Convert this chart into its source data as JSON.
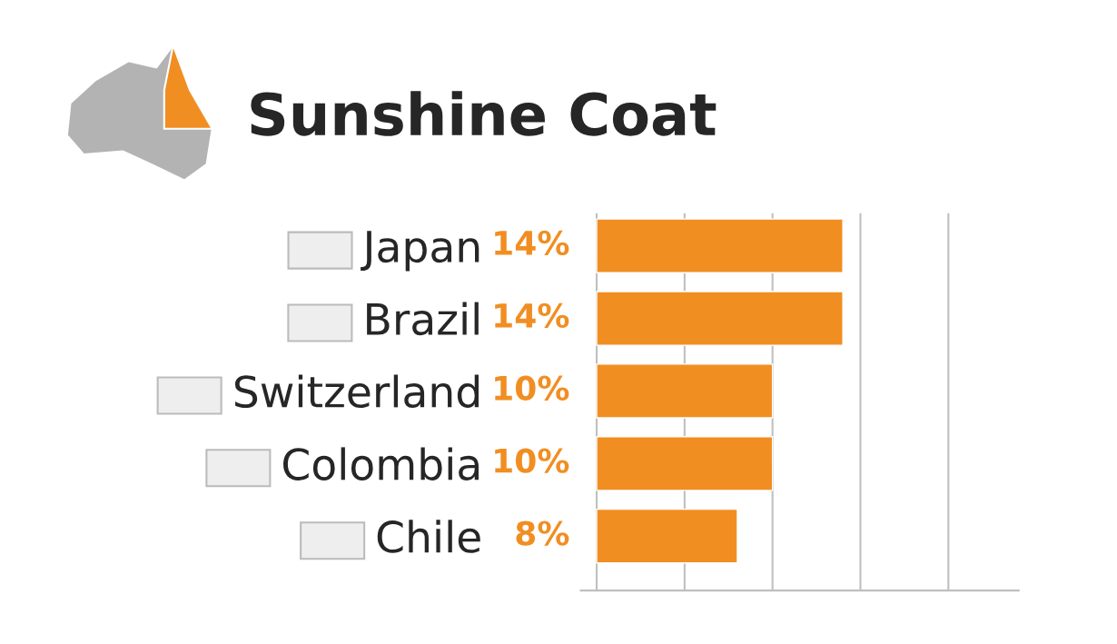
{
  "chart_data": {
    "type": "bar",
    "orientation": "horizontal",
    "title": "Sunshine Coat",
    "categories": [
      "Japan",
      "Brazil",
      "Switzerland",
      "Colombia",
      "Chile"
    ],
    "values": [
      14,
      14,
      10,
      10,
      8
    ],
    "color": "#f18e22",
    "value_labels": [
      "14%",
      "14%",
      "10%",
      "10%",
      "8%"
    ],
    "xlim": [
      -0.9,
      24
    ],
    "xticks": [
      {
        "value": 0,
        "label": null
      },
      {
        "value": 5,
        "label": null
      },
      {
        "value": 10,
        "label": null
      },
      {
        "value": 15,
        "label": null
      },
      {
        "value": 20,
        "label": null
      }
    ],
    "grid": "x",
    "tick_labels": "y"
  }
}
